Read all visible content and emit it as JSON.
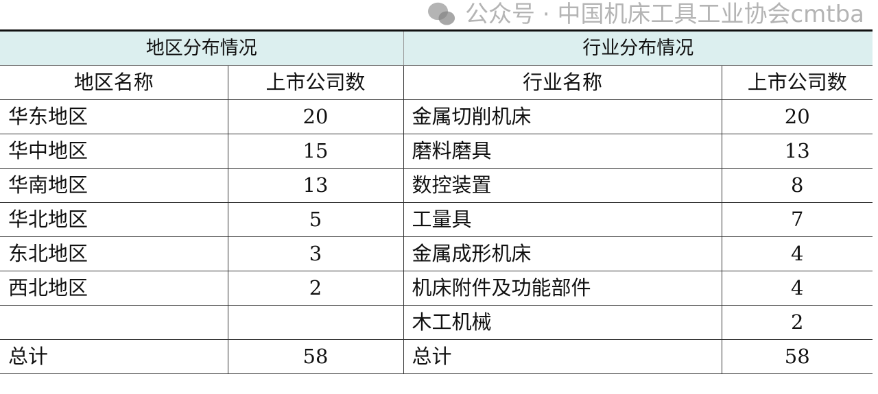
{
  "region": {
    "title": "地区分布情况",
    "col_name": "地区名称",
    "col_count": "上市公司数",
    "rows": [
      {
        "name": "华东地区",
        "count": "20"
      },
      {
        "name": "华中地区",
        "count": "15"
      },
      {
        "name": "华南地区",
        "count": "13"
      },
      {
        "name": "华北地区",
        "count": "5"
      },
      {
        "name": "东北地区",
        "count": "3"
      },
      {
        "name": "西北地区",
        "count": "2"
      },
      {
        "name": "",
        "count": ""
      }
    ],
    "total_label": "总计",
    "total": "58"
  },
  "industry": {
    "title": "行业分布情况",
    "col_name": "行业名称",
    "col_count": "上市公司数",
    "rows": [
      {
        "name": "金属切削机床",
        "count": "20"
      },
      {
        "name": "磨料磨具",
        "count": "13"
      },
      {
        "name": "数控装置",
        "count": "8"
      },
      {
        "name": "工量具",
        "count": "7"
      },
      {
        "name": "金属成形机床",
        "count": "4"
      },
      {
        "name": "机床附件及功能部件",
        "count": "4"
      },
      {
        "name": "木工机械",
        "count": "2"
      }
    ],
    "total_label": "总计",
    "total": "58"
  },
  "watermark": {
    "text": "公众号 · 中国机床工具工业协会cmtba",
    "icon": "wechat-icon"
  },
  "colors": {
    "header_bg": "#dcefef"
  }
}
